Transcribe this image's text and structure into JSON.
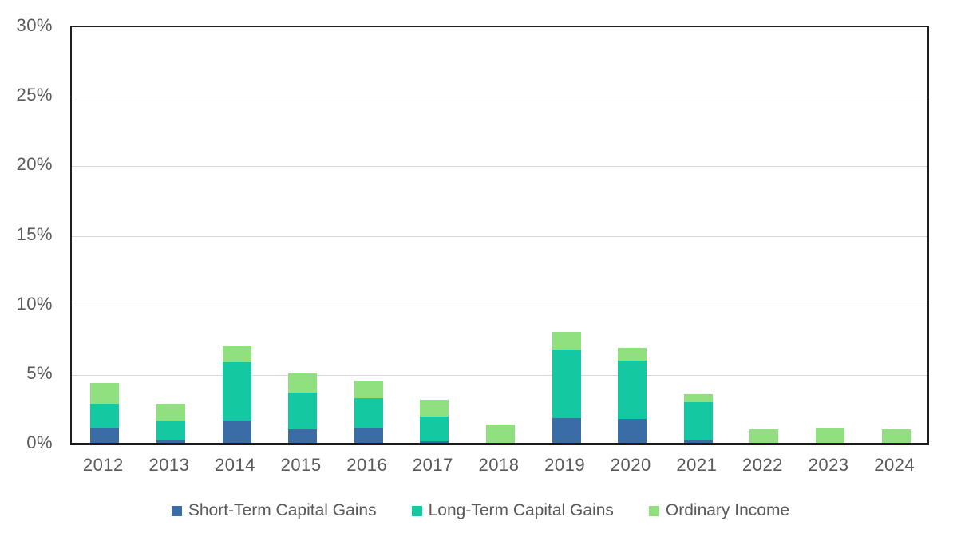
{
  "chart_data": {
    "type": "bar",
    "stacked": true,
    "title": "",
    "xlabel": "",
    "ylabel": "",
    "ylim": [
      0,
      30
    ],
    "ytick_labels": [
      "0%",
      "5%",
      "10%",
      "15%",
      "20%",
      "25%",
      "30%"
    ],
    "grid": true,
    "legend_position": "bottom",
    "categories": [
      "2012",
      "2013",
      "2014",
      "2015",
      "2016",
      "2017",
      "2018",
      "2019",
      "2020",
      "2021",
      "2022",
      "2023",
      "2024"
    ],
    "series": [
      {
        "name": "Short-Term Capital Gains",
        "color": "#3A6CA6",
        "values": [
          1.1,
          0.2,
          1.6,
          1.0,
          1.1,
          0.1,
          0,
          1.8,
          1.7,
          0.2,
          0,
          0,
          0
        ]
      },
      {
        "name": "Long-Term Capital Gains",
        "color": "#14C8A1",
        "values": [
          1.7,
          1.4,
          4.2,
          2.6,
          2.1,
          1.8,
          0,
          4.9,
          4.2,
          2.7,
          0,
          0,
          0
        ]
      },
      {
        "name": "Ordinary Income",
        "color": "#90E080",
        "values": [
          1.5,
          1.2,
          1.2,
          1.4,
          1.3,
          1.2,
          1.3,
          1.3,
          0.9,
          0.6,
          1.0,
          1.1,
          1.0
        ]
      }
    ],
    "colors": {
      "grid": "#d9d9d9",
      "border": "#1f1f1f",
      "axis_text": "#595959",
      "background": "#ffffff"
    }
  }
}
